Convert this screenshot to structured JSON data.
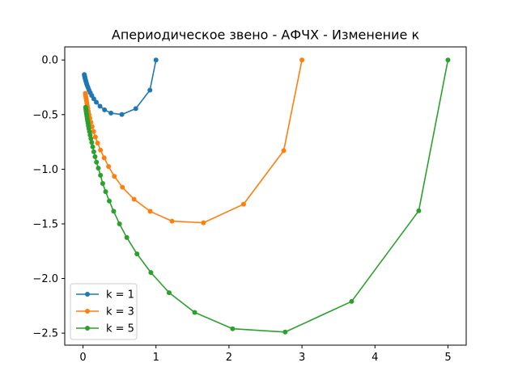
{
  "chart_data": {
    "type": "line",
    "title": "Апериодическое звено - АФЧХ - Изменение к",
    "xlabel": "",
    "ylabel": "",
    "xlim": [
      -0.25,
      5.25
    ],
    "ylim": [
      -2.61,
      0.12
    ],
    "x_ticks": [
      0,
      1,
      2,
      3,
      4,
      5
    ],
    "y_ticks": [
      0.0,
      -0.5,
      -1.0,
      -1.5,
      -2.0,
      -2.5
    ],
    "x_tick_labels": [
      "0",
      "1",
      "2",
      "3",
      "4",
      "5"
    ],
    "y_tick_labels": [
      "0.0",
      "−0.5",
      "−1.0",
      "−1.5",
      "−2.0",
      "−2.5"
    ],
    "grid": false,
    "legend_position": "lower-left",
    "series": [
      {
        "name": "k = 1",
        "color": "#1f77b4",
        "x": [
          1.0,
          0.917,
          0.723,
          0.532,
          0.383,
          0.295,
          0.233,
          0.183,
          0.148,
          0.12,
          0.1,
          0.082,
          0.069,
          0.058,
          0.05,
          0.042,
          0.036,
          0.031,
          0.027,
          0.024,
          0.021,
          0.018
        ],
        "y": [
          0.0,
          -0.276,
          -0.445,
          -0.499,
          -0.486,
          -0.456,
          -0.423,
          -0.387,
          -0.355,
          -0.325,
          -0.3,
          -0.275,
          -0.253,
          -0.234,
          -0.218,
          -0.2,
          -0.186,
          -0.173,
          -0.162,
          -0.153,
          -0.144,
          -0.133
        ]
      },
      {
        "name": "k = 3",
        "color": "#ff7f0e",
        "x": [
          3.0,
          2.75,
          2.2,
          1.65,
          1.22,
          0.92,
          0.7,
          0.54,
          0.43,
          0.35,
          0.29,
          0.24,
          0.2,
          0.17,
          0.145,
          0.125,
          0.108,
          0.094,
          0.083,
          0.074,
          0.066,
          0.059,
          0.053,
          0.048,
          0.043,
          0.039,
          0.035,
          0.032
        ],
        "y": [
          0.0,
          -0.83,
          -1.32,
          -1.49,
          -1.475,
          -1.385,
          -1.275,
          -1.165,
          -1.065,
          -0.975,
          -0.895,
          -0.825,
          -0.76,
          -0.705,
          -0.655,
          -0.61,
          -0.57,
          -0.533,
          -0.5,
          -0.47,
          -0.443,
          -0.418,
          -0.395,
          -0.374,
          -0.355,
          -0.337,
          -0.32,
          -0.305
        ]
      },
      {
        "name": "k = 5",
        "color": "#2ca02c",
        "x": [
          5.0,
          4.6,
          3.68,
          2.77,
          2.05,
          1.53,
          1.18,
          0.93,
          0.74,
          0.6,
          0.5,
          0.42,
          0.36,
          0.31,
          0.27,
          0.24,
          0.21,
          0.185,
          0.165,
          0.148,
          0.133,
          0.12,
          0.108,
          0.098,
          0.089,
          0.081,
          0.074,
          0.068,
          0.062,
          0.057,
          0.053,
          0.049,
          0.045,
          0.042,
          0.039,
          0.036
        ],
        "y": [
          0.0,
          -1.38,
          -2.21,
          -2.49,
          -2.46,
          -2.31,
          -2.13,
          -1.945,
          -1.775,
          -1.625,
          -1.5,
          -1.385,
          -1.29,
          -1.205,
          -1.13,
          -1.055,
          -0.99,
          -0.935,
          -0.885,
          -0.84,
          -0.795,
          -0.755,
          -0.72,
          -0.687,
          -0.656,
          -0.628,
          -0.602,
          -0.578,
          -0.555,
          -0.534,
          -0.514,
          -0.495,
          -0.478,
          -0.462,
          -0.447,
          -0.432
        ]
      }
    ]
  }
}
